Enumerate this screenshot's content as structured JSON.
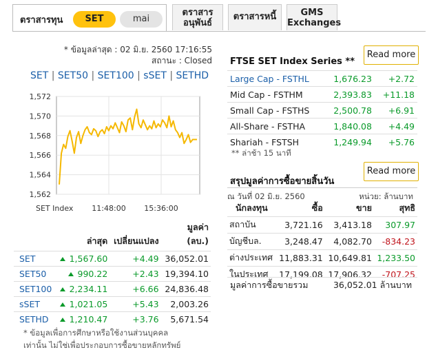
{
  "tabs": {
    "main_label": "ตราสารทุน",
    "pill_set": "SET",
    "pill_mai": "mai",
    "deriv_line1": "ตราสาร",
    "deriv_line2": "อนุพันธ์",
    "bond": "ตราสารหนี้",
    "gms_line1": "GMS",
    "gms_line2": "Exchanges"
  },
  "meta": {
    "updated": "* ข้อมูลล่าสุด : 02 มิ.ย. 2560 17:16:55",
    "status": "สถานะ : Closed"
  },
  "index_links": [
    "SET",
    "SET50",
    "SET100",
    "sSET",
    "SETHD"
  ],
  "chart_data": {
    "type": "line",
    "title": "",
    "xlabel": "SET Index",
    "ylabel": "",
    "ylim": [
      1562,
      1572
    ],
    "yticks": [
      "1,572",
      "1,570",
      "1,568",
      "1,566",
      "1,564",
      "1,562"
    ],
    "xticks": [
      "11:48:00",
      "15:36:00"
    ],
    "color": "#f5b800",
    "series": [
      {
        "values": [
          1563.0,
          1566.2,
          1567.1,
          1566.7,
          1567.9,
          1568.5,
          1567.4,
          1566.2,
          1567.8,
          1568.4,
          1567.2,
          1568.0,
          1568.6,
          1568.9,
          1568.3,
          1568.1,
          1568.7,
          1568.5,
          1567.9,
          1568.4,
          1568.6,
          1568.2,
          1568.9,
          1568.5,
          1569.0,
          1568.7,
          1569.3,
          1568.8,
          1568.3,
          1569.4,
          1569.0,
          1568.4,
          1569.6,
          1569.8,
          1568.6,
          1569.9,
          1570.7,
          1569.2,
          1568.8,
          1569.6,
          1569.1,
          1568.6,
          1569.0,
          1568.7,
          1569.5,
          1568.8,
          1569.2,
          1568.9,
          1569.6,
          1569.3,
          1568.8,
          1570.0,
          1568.9,
          1569.5,
          1568.6,
          1568.3,
          1567.8,
          1568.3,
          1567.2,
          1567.6,
          1568.1,
          1567.3,
          1567.6,
          1567.6,
          1567.6
        ]
      }
    ]
  },
  "left_table": {
    "headers": [
      "",
      "ล่าสุด",
      "เปลี่ยนแปลง",
      "มูลค่า (ลบ.)"
    ],
    "value_header_line1": "มูลค่า",
    "value_header_line2": "(ลบ.)",
    "rows": [
      {
        "name": "SET",
        "last": "1,567.60",
        "change": "+4.49",
        "value": "36,052.01"
      },
      {
        "name": "SET50",
        "last": "990.22",
        "change": "+2.43",
        "value": "19,394.10"
      },
      {
        "name": "SET100",
        "last": "2,234.11",
        "change": "+6.66",
        "value": "24,836.48"
      },
      {
        "name": "sSET",
        "last": "1,021.05",
        "change": "+5.43",
        "value": "2,003.26"
      },
      {
        "name": "SETHD",
        "last": "1,210.47",
        "change": "+3.76",
        "value": "5,671.54"
      }
    ]
  },
  "note_line1": "* ข้อมูลเพื่อการศึกษาหรือใช้งานส่วนบุคคล",
  "note_line2": "เท่านั้น ไม่ใช่เพื่อประกอบการซื้อขายหลักทรัพย์",
  "ftse": {
    "title": "FTSE SET Index Series **",
    "read_more": "Read more",
    "rows": [
      {
        "name": "Large Cap - FSTHL",
        "value": "1,676.23",
        "change": "+2.72"
      },
      {
        "name": "Mid Cap - FSTHM",
        "value": "2,393.83",
        "change": "+11.18"
      },
      {
        "name": "Small Cap - FSTHS",
        "value": "2,500.78",
        "change": "+6.91"
      },
      {
        "name": "All-Share - FSTHA",
        "value": "1,840.08",
        "change": "+4.49"
      },
      {
        "name": "Shariah - FSTSH",
        "value": "1,249.94",
        "change": "+5.76"
      }
    ],
    "delay_note": "** ล่าช้า 15 นาที"
  },
  "trading": {
    "title": "สรุปมูลค่าการซื้อขายสิ้นวัน",
    "read_more": "Read more",
    "date": "ณ วันที่ 02 มิ.ย. 2560",
    "unit": "หน่วย: ล้านบาท",
    "headers": [
      "นักลงทุน",
      "ซื้อ",
      "ขาย",
      "สุทธิ"
    ],
    "rows": [
      {
        "name": "สถาบัน",
        "buy": "3,721.16",
        "sell": "3,413.18",
        "net": "307.97",
        "sign": "pos"
      },
      {
        "name": "บัญชีบล.",
        "buy": "3,248.47",
        "sell": "4,082.70",
        "net": "-834.23",
        "sign": "neg"
      },
      {
        "name": "ต่างประเทศ",
        "buy": "11,883.31",
        "sell": "10,649.81",
        "net": "1,233.50",
        "sign": "pos"
      },
      {
        "name": "ในประเทศ",
        "buy": "17,199.08",
        "sell": "17,906.32",
        "net": "-707.25",
        "sign": "neg"
      }
    ],
    "total_label": "มูลค่าการซื้อขายรวม",
    "total_value": "36,052.01 ล้านบาท"
  }
}
